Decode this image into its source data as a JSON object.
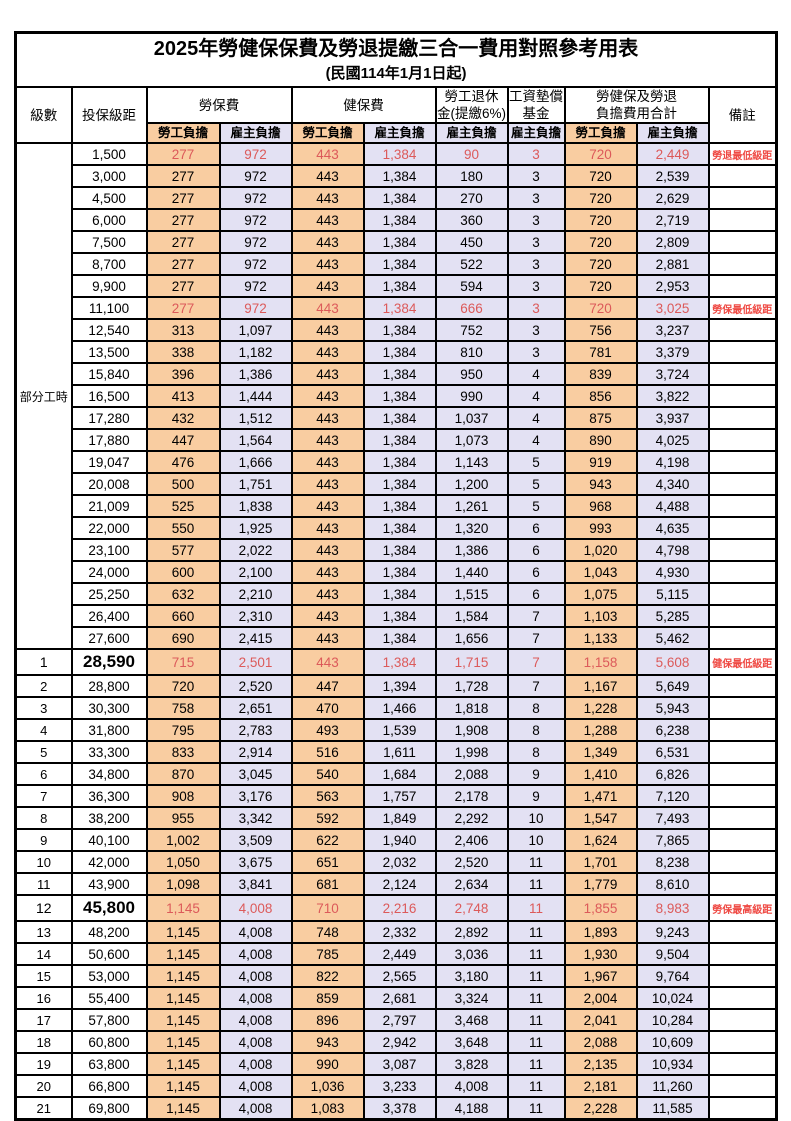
{
  "title": "2025年勞健保保費及勞退提繳三合一費用對照參考用表",
  "subtitle": "(民國114年1月1日起)",
  "colors": {
    "employee_bg": "#F9CDA1",
    "employer_bg": "#E3E1F3",
    "value_red": "#DC5A5A",
    "remark_red": "#EF4943"
  },
  "table": {
    "headers": {
      "level": "級數",
      "salary_bracket": "投保級距",
      "labor_insurance": "勞保費",
      "health_insurance": "健保費",
      "pension_line1": "勞工退休",
      "pension_line2": "金(提繳6%)",
      "wage_fund_line1": "工資墊償",
      "wage_fund_line2": "基金",
      "total_line1": "勞健保及勞退",
      "total_line2": "負擔費用合計",
      "remark": "備註",
      "employee": "勞工負擔",
      "employer": "雇主負擔"
    },
    "part_time_label": "部分工時",
    "rows": [
      {
        "level": "",
        "salary": "1,500",
        "values": [
          "277",
          "972",
          "443",
          "1,384",
          "90",
          "3",
          "720",
          "2,449"
        ],
        "remark": "勞退最低級距",
        "red": true,
        "key": false
      },
      {
        "level": "",
        "salary": "3,000",
        "values": [
          "277",
          "972",
          "443",
          "1,384",
          "180",
          "3",
          "720",
          "2,539"
        ],
        "remark": "",
        "red": false,
        "key": false
      },
      {
        "level": "",
        "salary": "4,500",
        "values": [
          "277",
          "972",
          "443",
          "1,384",
          "270",
          "3",
          "720",
          "2,629"
        ],
        "remark": "",
        "red": false,
        "key": false
      },
      {
        "level": "",
        "salary": "6,000",
        "values": [
          "277",
          "972",
          "443",
          "1,384",
          "360",
          "3",
          "720",
          "2,719"
        ],
        "remark": "",
        "red": false,
        "key": false
      },
      {
        "level": "",
        "salary": "7,500",
        "values": [
          "277",
          "972",
          "443",
          "1,384",
          "450",
          "3",
          "720",
          "2,809"
        ],
        "remark": "",
        "red": false,
        "key": false
      },
      {
        "level": "",
        "salary": "8,700",
        "values": [
          "277",
          "972",
          "443",
          "1,384",
          "522",
          "3",
          "720",
          "2,881"
        ],
        "remark": "",
        "red": false,
        "key": false
      },
      {
        "level": "",
        "salary": "9,900",
        "values": [
          "277",
          "972",
          "443",
          "1,384",
          "594",
          "3",
          "720",
          "2,953"
        ],
        "remark": "",
        "red": false,
        "key": false
      },
      {
        "level": "",
        "salary": "11,100",
        "values": [
          "277",
          "972",
          "443",
          "1,384",
          "666",
          "3",
          "720",
          "3,025"
        ],
        "remark": "勞保最低級距",
        "red": true,
        "key": false
      },
      {
        "level": "",
        "salary": "12,540",
        "values": [
          "313",
          "1,097",
          "443",
          "1,384",
          "752",
          "3",
          "756",
          "3,237"
        ],
        "remark": "",
        "red": false,
        "key": false
      },
      {
        "level": "",
        "salary": "13,500",
        "values": [
          "338",
          "1,182",
          "443",
          "1,384",
          "810",
          "3",
          "781",
          "3,379"
        ],
        "remark": "",
        "red": false,
        "key": false
      },
      {
        "level": "",
        "salary": "15,840",
        "values": [
          "396",
          "1,386",
          "443",
          "1,384",
          "950",
          "4",
          "839",
          "3,724"
        ],
        "remark": "",
        "red": false,
        "key": false
      },
      {
        "level": "",
        "salary": "16,500",
        "values": [
          "413",
          "1,444",
          "443",
          "1,384",
          "990",
          "4",
          "856",
          "3,822"
        ],
        "remark": "",
        "red": false,
        "key": false
      },
      {
        "level": "",
        "salary": "17,280",
        "values": [
          "432",
          "1,512",
          "443",
          "1,384",
          "1,037",
          "4",
          "875",
          "3,937"
        ],
        "remark": "",
        "red": false,
        "key": false
      },
      {
        "level": "",
        "salary": "17,880",
        "values": [
          "447",
          "1,564",
          "443",
          "1,384",
          "1,073",
          "4",
          "890",
          "4,025"
        ],
        "remark": "",
        "red": false,
        "key": false
      },
      {
        "level": "",
        "salary": "19,047",
        "values": [
          "476",
          "1,666",
          "443",
          "1,384",
          "1,143",
          "5",
          "919",
          "4,198"
        ],
        "remark": "",
        "red": false,
        "key": false
      },
      {
        "level": "",
        "salary": "20,008",
        "values": [
          "500",
          "1,751",
          "443",
          "1,384",
          "1,200",
          "5",
          "943",
          "4,340"
        ],
        "remark": "",
        "red": false,
        "key": false
      },
      {
        "level": "",
        "salary": "21,009",
        "values": [
          "525",
          "1,838",
          "443",
          "1,384",
          "1,261",
          "5",
          "968",
          "4,488"
        ],
        "remark": "",
        "red": false,
        "key": false
      },
      {
        "level": "",
        "salary": "22,000",
        "values": [
          "550",
          "1,925",
          "443",
          "1,384",
          "1,320",
          "6",
          "993",
          "4,635"
        ],
        "remark": "",
        "red": false,
        "key": false
      },
      {
        "level": "",
        "salary": "23,100",
        "values": [
          "577",
          "2,022",
          "443",
          "1,384",
          "1,386",
          "6",
          "1,020",
          "4,798"
        ],
        "remark": "",
        "red": false,
        "key": false
      },
      {
        "level": "",
        "salary": "24,000",
        "values": [
          "600",
          "2,100",
          "443",
          "1,384",
          "1,440",
          "6",
          "1,043",
          "4,930"
        ],
        "remark": "",
        "red": false,
        "key": false
      },
      {
        "level": "",
        "salary": "25,250",
        "values": [
          "632",
          "2,210",
          "443",
          "1,384",
          "1,515",
          "6",
          "1,075",
          "5,115"
        ],
        "remark": "",
        "red": false,
        "key": false
      },
      {
        "level": "",
        "salary": "26,400",
        "values": [
          "660",
          "2,310",
          "443",
          "1,384",
          "1,584",
          "7",
          "1,103",
          "5,285"
        ],
        "remark": "",
        "red": false,
        "key": false
      },
      {
        "level": "",
        "salary": "27,600",
        "values": [
          "690",
          "2,415",
          "443",
          "1,384",
          "1,656",
          "7",
          "1,133",
          "5,462"
        ],
        "remark": "",
        "red": false,
        "key": false
      },
      {
        "level": "1",
        "salary": "28,590",
        "values": [
          "715",
          "2,501",
          "443",
          "1,384",
          "1,715",
          "7",
          "1,158",
          "5,608"
        ],
        "remark": "健保最低級距",
        "red": true,
        "key": true
      },
      {
        "level": "2",
        "salary": "28,800",
        "values": [
          "720",
          "2,520",
          "447",
          "1,394",
          "1,728",
          "7",
          "1,167",
          "5,649"
        ],
        "remark": "",
        "red": false,
        "key": false
      },
      {
        "level": "3",
        "salary": "30,300",
        "values": [
          "758",
          "2,651",
          "470",
          "1,466",
          "1,818",
          "8",
          "1,228",
          "5,943"
        ],
        "remark": "",
        "red": false,
        "key": false
      },
      {
        "level": "4",
        "salary": "31,800",
        "values": [
          "795",
          "2,783",
          "493",
          "1,539",
          "1,908",
          "8",
          "1,288",
          "6,238"
        ],
        "remark": "",
        "red": false,
        "key": false
      },
      {
        "level": "5",
        "salary": "33,300",
        "values": [
          "833",
          "2,914",
          "516",
          "1,611",
          "1,998",
          "8",
          "1,349",
          "6,531"
        ],
        "remark": "",
        "red": false,
        "key": false
      },
      {
        "level": "6",
        "salary": "34,800",
        "values": [
          "870",
          "3,045",
          "540",
          "1,684",
          "2,088",
          "9",
          "1,410",
          "6,826"
        ],
        "remark": "",
        "red": false,
        "key": false
      },
      {
        "level": "7",
        "salary": "36,300",
        "values": [
          "908",
          "3,176",
          "563",
          "1,757",
          "2,178",
          "9",
          "1,471",
          "7,120"
        ],
        "remark": "",
        "red": false,
        "key": false
      },
      {
        "level": "8",
        "salary": "38,200",
        "values": [
          "955",
          "3,342",
          "592",
          "1,849",
          "2,292",
          "10",
          "1,547",
          "7,493"
        ],
        "remark": "",
        "red": false,
        "key": false
      },
      {
        "level": "9",
        "salary": "40,100",
        "values": [
          "1,002",
          "3,509",
          "622",
          "1,940",
          "2,406",
          "10",
          "1,624",
          "7,865"
        ],
        "remark": "",
        "red": false,
        "key": false
      },
      {
        "level": "10",
        "salary": "42,000",
        "values": [
          "1,050",
          "3,675",
          "651",
          "2,032",
          "2,520",
          "11",
          "1,701",
          "8,238"
        ],
        "remark": "",
        "red": false,
        "key": false
      },
      {
        "level": "11",
        "salary": "43,900",
        "values": [
          "1,098",
          "3,841",
          "681",
          "2,124",
          "2,634",
          "11",
          "1,779",
          "8,610"
        ],
        "remark": "",
        "red": false,
        "key": false
      },
      {
        "level": "12",
        "salary": "45,800",
        "values": [
          "1,145",
          "4,008",
          "710",
          "2,216",
          "2,748",
          "11",
          "1,855",
          "8,983"
        ],
        "remark": "勞保最高級距",
        "red": true,
        "key": true
      },
      {
        "level": "13",
        "salary": "48,200",
        "values": [
          "1,145",
          "4,008",
          "748",
          "2,332",
          "2,892",
          "11",
          "1,893",
          "9,243"
        ],
        "remark": "",
        "red": false,
        "key": false
      },
      {
        "level": "14",
        "salary": "50,600",
        "values": [
          "1,145",
          "4,008",
          "785",
          "2,449",
          "3,036",
          "11",
          "1,930",
          "9,504"
        ],
        "remark": "",
        "red": false,
        "key": false
      },
      {
        "level": "15",
        "salary": "53,000",
        "values": [
          "1,145",
          "4,008",
          "822",
          "2,565",
          "3,180",
          "11",
          "1,967",
          "9,764"
        ],
        "remark": "",
        "red": false,
        "key": false
      },
      {
        "level": "16",
        "salary": "55,400",
        "values": [
          "1,145",
          "4,008",
          "859",
          "2,681",
          "3,324",
          "11",
          "2,004",
          "10,024"
        ],
        "remark": "",
        "red": false,
        "key": false
      },
      {
        "level": "17",
        "salary": "57,800",
        "values": [
          "1,145",
          "4,008",
          "896",
          "2,797",
          "3,468",
          "11",
          "2,041",
          "10,284"
        ],
        "remark": "",
        "red": false,
        "key": false
      },
      {
        "level": "18",
        "salary": "60,800",
        "values": [
          "1,145",
          "4,008",
          "943",
          "2,942",
          "3,648",
          "11",
          "2,088",
          "10,609"
        ],
        "remark": "",
        "red": false,
        "key": false
      },
      {
        "level": "19",
        "salary": "63,800",
        "values": [
          "1,145",
          "4,008",
          "990",
          "3,087",
          "3,828",
          "11",
          "2,135",
          "10,934"
        ],
        "remark": "",
        "red": false,
        "key": false
      },
      {
        "level": "20",
        "salary": "66,800",
        "values": [
          "1,145",
          "4,008",
          "1,036",
          "3,233",
          "4,008",
          "11",
          "2,181",
          "11,260"
        ],
        "remark": "",
        "red": false,
        "key": false
      },
      {
        "level": "21",
        "salary": "69,800",
        "values": [
          "1,145",
          "4,008",
          "1,083",
          "3,378",
          "4,188",
          "11",
          "2,228",
          "11,585"
        ],
        "remark": "",
        "red": false,
        "key": false
      }
    ]
  }
}
